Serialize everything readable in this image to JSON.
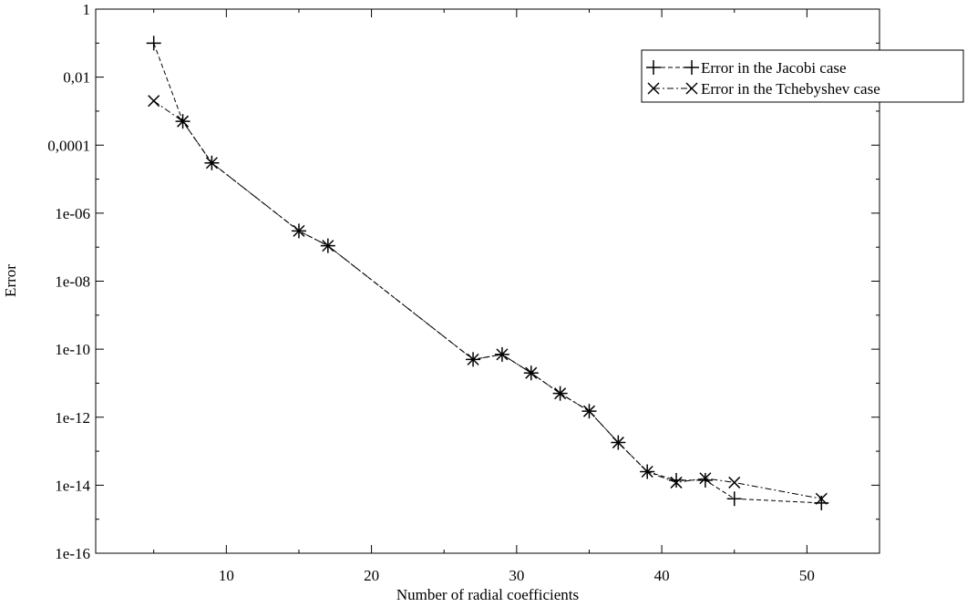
{
  "chart_data": {
    "type": "line",
    "title": "",
    "xlabel": "Number of radial coefficients",
    "ylabel": "Error",
    "xlim": [
      1,
      55
    ],
    "ylim": [
      1e-16,
      1
    ],
    "yscale": "log",
    "grid": false,
    "legend_position": "top-right",
    "x_ticks": [
      10,
      20,
      30,
      40,
      50
    ],
    "x_tick_labels": [
      "10",
      "20",
      "30",
      "40",
      "50"
    ],
    "y_ticks": [
      1,
      0.01,
      0.0001,
      1e-06,
      1e-08,
      1e-10,
      1e-12,
      1e-14,
      1e-16
    ],
    "y_tick_labels": [
      "1",
      "0,01",
      "0,0001",
      "1e-06",
      "1e-08",
      "1e-10",
      "1e-12",
      "1e-14",
      "1e-16"
    ],
    "series": [
      {
        "name": "Error in the Jacobi case",
        "marker": "plus",
        "line_style": "dashed",
        "color": "#000000",
        "x": [
          5,
          7,
          9,
          15,
          17,
          27,
          29,
          31,
          33,
          35,
          37,
          39,
          41,
          43,
          45,
          51
        ],
        "y": [
          0.1,
          0.0005,
          3e-05,
          3e-07,
          1.1e-07,
          5e-11,
          7e-11,
          2e-11,
          5e-12,
          1.5e-12,
          1.8e-13,
          2.5e-14,
          1.4e-14,
          1.4e-14,
          4e-15,
          3e-15
        ]
      },
      {
        "name": "Error in the Tchebyshev case",
        "marker": "x",
        "line_style": "dash-dot",
        "color": "#000000",
        "x": [
          5,
          7,
          9,
          15,
          17,
          27,
          29,
          31,
          33,
          35,
          37,
          39,
          41,
          43,
          45,
          51
        ],
        "y": [
          0.002,
          0.0005,
          3e-05,
          3e-07,
          1.1e-07,
          5e-11,
          7e-11,
          2e-11,
          5e-12,
          1.5e-12,
          1.8e-13,
          2.5e-14,
          1.2e-14,
          1.6e-14,
          1.2e-14,
          4e-15
        ]
      }
    ]
  }
}
